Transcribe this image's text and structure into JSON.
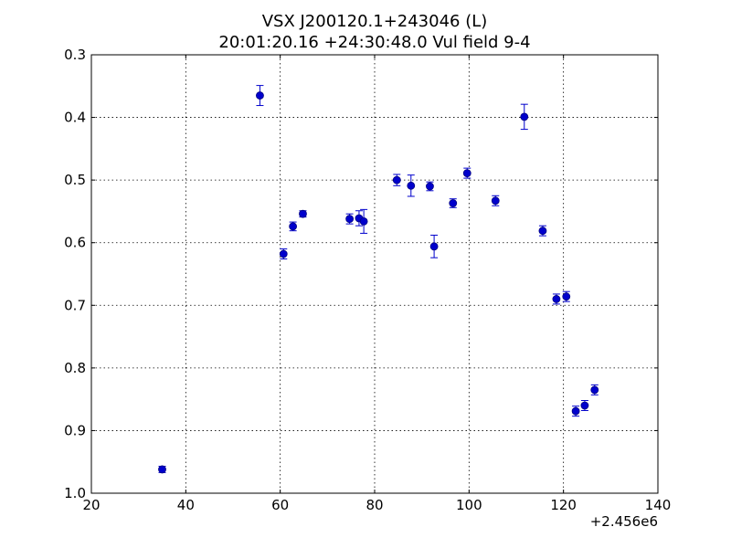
{
  "chart_data": {
    "type": "scatter",
    "title": "VSX J200120.1+243046 (L)",
    "subtitle": "20:01:20.16 +24:30:48.0 Vul field 9-4",
    "xlabel": "",
    "ylabel": "",
    "x_offset_label": "+2.456e6",
    "xlim": [
      20,
      140
    ],
    "ylim": [
      1.0,
      0.3
    ],
    "y_inverted": true,
    "grid": true,
    "marker_color": "#0000cc",
    "x_ticks": [
      "20",
      "40",
      "60",
      "80",
      "100",
      "120",
      "140"
    ],
    "y_ticks": [
      "0.3",
      "0.4",
      "0.5",
      "0.6",
      "0.7",
      "0.8",
      "0.9",
      "1.0"
    ],
    "series": [
      {
        "points": [
          {
            "x": 2456035.0,
            "y": 0.962,
            "err": 0.005
          },
          {
            "x": 2456055.7,
            "y": 0.365,
            "err": 0.016
          },
          {
            "x": 2456060.7,
            "y": 0.618,
            "err": 0.008
          },
          {
            "x": 2456062.7,
            "y": 0.574,
            "err": 0.007
          },
          {
            "x": 2456064.8,
            "y": 0.554,
            "err": 0.005
          },
          {
            "x": 2456074.7,
            "y": 0.562,
            "err": 0.008
          },
          {
            "x": 2456076.7,
            "y": 0.561,
            "err": 0.012
          },
          {
            "x": 2456077.7,
            "y": 0.566,
            "err": 0.019
          },
          {
            "x": 2456084.7,
            "y": 0.5,
            "err": 0.009
          },
          {
            "x": 2456087.7,
            "y": 0.509,
            "err": 0.017
          },
          {
            "x": 2456091.7,
            "y": 0.51,
            "err": 0.007
          },
          {
            "x": 2456092.6,
            "y": 0.606,
            "err": 0.018
          },
          {
            "x": 2456096.6,
            "y": 0.537,
            "err": 0.007
          },
          {
            "x": 2456099.6,
            "y": 0.489,
            "err": 0.008
          },
          {
            "x": 2456105.6,
            "y": 0.533,
            "err": 0.008
          },
          {
            "x": 2456111.7,
            "y": 0.399,
            "err": 0.02
          },
          {
            "x": 2456115.6,
            "y": 0.581,
            "err": 0.008
          },
          {
            "x": 2456118.5,
            "y": 0.69,
            "err": 0.008
          },
          {
            "x": 2456120.6,
            "y": 0.686,
            "err": 0.008
          },
          {
            "x": 2456122.6,
            "y": 0.869,
            "err": 0.008
          },
          {
            "x": 2456124.5,
            "y": 0.86,
            "err": 0.008
          },
          {
            "x": 2456126.6,
            "y": 0.835,
            "err": 0.008
          }
        ]
      }
    ]
  }
}
